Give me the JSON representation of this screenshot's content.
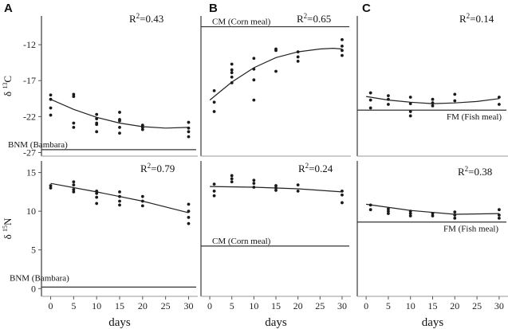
{
  "figure": {
    "colors": {
      "axis": "#555555",
      "points": "#1a1a1a",
      "curve": "#222222",
      "ref_line": "#333333",
      "frame": "#999999"
    }
  },
  "chart_data": [
    {
      "id": "A-top",
      "panel_letter": "A",
      "type": "scatter",
      "r2_prefix": "R",
      "r2_sup": "2",
      "r2_value": "=0.43",
      "ylabel": {
        "delta": "δ",
        "sup": "13",
        "element": "C"
      },
      "ylim": [
        -27.5,
        -8
      ],
      "xlim": [
        -2,
        32
      ],
      "yticks": [
        -12,
        -17,
        -22,
        -27
      ],
      "ref_line": {
        "y": -26.6,
        "label": "BNM (Bambara)"
      },
      "points": [
        [
          0,
          -19
        ],
        [
          0,
          -19.6
        ],
        [
          0,
          -21.8
        ],
        [
          0,
          -20.8
        ],
        [
          5,
          -18.9
        ],
        [
          5,
          -19.2
        ],
        [
          5,
          -22.9
        ],
        [
          5,
          -23.5
        ],
        [
          10,
          -21.7
        ],
        [
          10,
          -22.3
        ],
        [
          10,
          -22.9
        ],
        [
          10,
          -23.1
        ],
        [
          10,
          -24.1
        ],
        [
          15,
          -21.4
        ],
        [
          15,
          -22.4
        ],
        [
          15,
          -23.5
        ],
        [
          15,
          -24.3
        ],
        [
          15,
          -22.6
        ],
        [
          20,
          -23.2
        ],
        [
          20,
          -23.5
        ],
        [
          20,
          -23.8
        ],
        [
          30,
          -22.8
        ],
        [
          30,
          -23.6
        ],
        [
          30,
          -24.1
        ],
        [
          30,
          -24.8
        ]
      ],
      "curve": [
        [
          0,
          -19.6
        ],
        [
          5,
          -21.0
        ],
        [
          10,
          -22.1
        ],
        [
          15,
          -22.9
        ],
        [
          20,
          -23.4
        ],
        [
          25,
          -23.6
        ],
        [
          30,
          -23.5
        ]
      ]
    },
    {
      "id": "B-top",
      "panel_letter": "B",
      "type": "scatter",
      "r2_prefix": "R",
      "r2_sup": "2",
      "r2_value": "=0.65",
      "ylim": [
        -27.5,
        -8
      ],
      "xlim": [
        -2,
        32
      ],
      "ref_line": {
        "y": -9.5,
        "label": "CM (Corn meal)"
      },
      "points": [
        [
          1,
          -20
        ],
        [
          1,
          -18.4
        ],
        [
          1,
          -21.3
        ],
        [
          5,
          -15.5
        ],
        [
          5,
          -15.9
        ],
        [
          5,
          -16.5
        ],
        [
          5,
          -17.3
        ],
        [
          5,
          -14.7
        ],
        [
          10,
          -13.9
        ],
        [
          10,
          -15.4
        ],
        [
          10,
          -16.9
        ],
        [
          10,
          -19.7
        ],
        [
          15,
          -12.6
        ],
        [
          15,
          -12.8
        ],
        [
          15,
          -15.7
        ],
        [
          20,
          -13
        ],
        [
          20,
          -13.7
        ],
        [
          20,
          -14.3
        ],
        [
          30,
          -11.3
        ],
        [
          30,
          -12.2
        ],
        [
          30,
          -12.8
        ],
        [
          30,
          -13.5
        ]
      ],
      "curve": [
        [
          0,
          -19.7
        ],
        [
          5,
          -17.2
        ],
        [
          10,
          -15.2
        ],
        [
          15,
          -13.8
        ],
        [
          20,
          -13.0
        ],
        [
          25,
          -12.6
        ],
        [
          28,
          -12.5
        ],
        [
          30,
          -12.6
        ]
      ]
    },
    {
      "id": "C-top",
      "panel_letter": "C",
      "type": "scatter",
      "r2_prefix": "R",
      "r2_sup": "2",
      "r2_value": "=0.14",
      "ylim": [
        -27.5,
        -8
      ],
      "xlim": [
        -2,
        32
      ],
      "ref_line": {
        "y": -21.1,
        "label": "FM (Fish meal)"
      },
      "points": [
        [
          1,
          -18.7
        ],
        [
          1,
          -19.7
        ],
        [
          1,
          -20.8
        ],
        [
          5,
          -19.1
        ],
        [
          5,
          -19.6
        ],
        [
          5,
          -20.3
        ],
        [
          10,
          -19.3
        ],
        [
          10,
          -20.2
        ],
        [
          10,
          -21.3
        ],
        [
          10,
          -21.9
        ],
        [
          15,
          -19.6
        ],
        [
          15,
          -20.1
        ],
        [
          15,
          -20.5
        ],
        [
          20,
          -18.9
        ],
        [
          20,
          -19.8
        ],
        [
          30,
          -19.3
        ],
        [
          30,
          -20.3
        ]
      ],
      "curve": [
        [
          0,
          -19.2
        ],
        [
          5,
          -19.7
        ],
        [
          10,
          -20.0
        ],
        [
          15,
          -20.2
        ],
        [
          20,
          -20.1
        ],
        [
          25,
          -19.9
        ],
        [
          30,
          -19.5
        ]
      ]
    },
    {
      "id": "A-bottom",
      "type": "scatter",
      "r2_prefix": "R",
      "r2_sup": "2",
      "r2_value": "=0.79",
      "ylabel": {
        "delta": "δ",
        "sup": "15",
        "element": "N"
      },
      "ylim": [
        -1,
        16.5
      ],
      "xlim": [
        -2,
        32
      ],
      "yticks": [
        0,
        5,
        10,
        15
      ],
      "xticks": [
        0,
        5,
        10,
        15,
        20,
        25,
        30
      ],
      "xlabel": "days",
      "ref_line": {
        "y": 0.2,
        "label": "BNM (Bambara)"
      },
      "points": [
        [
          0,
          13.3
        ],
        [
          0,
          13
        ],
        [
          5,
          13.8
        ],
        [
          5,
          13.4
        ],
        [
          5,
          12.8
        ],
        [
          5,
          12.5
        ],
        [
          10,
          12.3
        ],
        [
          10,
          11.8
        ],
        [
          10,
          11
        ],
        [
          10,
          12.6
        ],
        [
          15,
          12.5
        ],
        [
          15,
          11.9
        ],
        [
          15,
          11.3
        ],
        [
          15,
          10.8
        ],
        [
          20,
          11.9
        ],
        [
          20,
          11.3
        ],
        [
          20,
          10.7
        ],
        [
          30,
          10.9
        ],
        [
          30,
          10
        ],
        [
          30,
          9.2
        ],
        [
          30,
          8.4
        ]
      ],
      "curve": [
        [
          0,
          13.6
        ],
        [
          10,
          12.5
        ],
        [
          20,
          11.3
        ],
        [
          30,
          9.8
        ]
      ]
    },
    {
      "id": "B-bottom",
      "type": "scatter",
      "r2_prefix": "R",
      "r2_sup": "2",
      "r2_value": "=0.24",
      "ylim": [
        -1,
        16.5
      ],
      "xlim": [
        -2,
        32
      ],
      "xticks": [
        0,
        5,
        10,
        15,
        20,
        25,
        30
      ],
      "xlabel": "days",
      "ref_line": {
        "y": 5.5,
        "label": "CM (Corn meal)"
      },
      "points": [
        [
          1,
          13.5
        ],
        [
          1,
          12.6
        ],
        [
          1,
          12
        ],
        [
          5,
          14.6
        ],
        [
          5,
          14.2
        ],
        [
          5,
          13.8
        ],
        [
          10,
          14
        ],
        [
          10,
          13.6
        ],
        [
          10,
          13.1
        ],
        [
          15,
          13.3
        ],
        [
          15,
          13
        ],
        [
          15,
          12.7
        ],
        [
          20,
          13.4
        ],
        [
          20,
          12.6
        ],
        [
          30,
          12.6
        ],
        [
          30,
          12.1
        ],
        [
          30,
          11.1
        ]
      ],
      "curve": [
        [
          0,
          13.2
        ],
        [
          10,
          13.1
        ],
        [
          20,
          12.9
        ],
        [
          30,
          12.5
        ]
      ]
    },
    {
      "id": "C-bottom",
      "type": "scatter",
      "r2_prefix": "R",
      "r2_sup": "2",
      "r2_value": "=0.38",
      "ylim": [
        -1,
        16.5
      ],
      "xlim": [
        -2,
        32
      ],
      "xticks": [
        0,
        5,
        10,
        15,
        20,
        25,
        30
      ],
      "xlabel": "days",
      "ref_line": {
        "y": 8.6,
        "label": "FM (Fish meal)"
      },
      "points": [
        [
          1,
          10.8
        ],
        [
          1,
          10.2
        ],
        [
          5,
          10.3
        ],
        [
          5,
          10
        ],
        [
          5,
          9.7
        ],
        [
          10,
          10
        ],
        [
          10,
          9.7
        ],
        [
          10,
          9.4
        ],
        [
          15,
          9.7
        ],
        [
          15,
          9.4
        ],
        [
          20,
          9.9
        ],
        [
          20,
          9.5
        ],
        [
          20,
          9.1
        ],
        [
          30,
          10.2
        ],
        [
          30,
          9.5
        ],
        [
          30,
          9.1
        ]
      ],
      "curve": [
        [
          0,
          10.9
        ],
        [
          10,
          10.1
        ],
        [
          20,
          9.6
        ],
        [
          30,
          9.7
        ]
      ]
    }
  ]
}
